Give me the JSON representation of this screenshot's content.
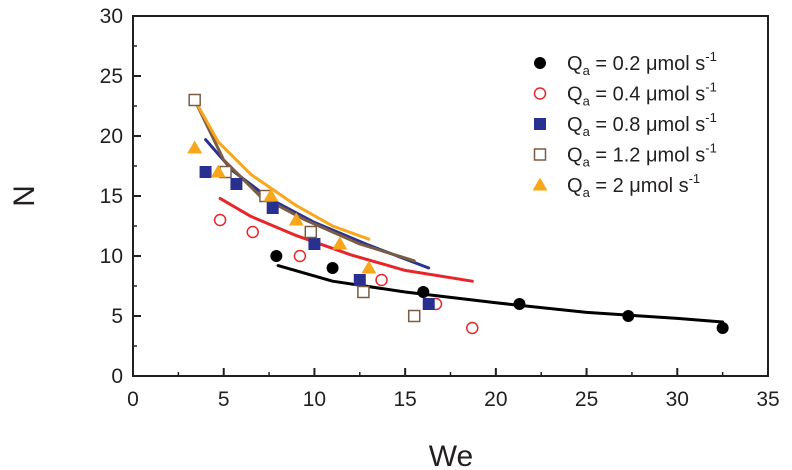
{
  "chart_data": {
    "type": "scatter",
    "xlabel": "We",
    "ylabel": "N",
    "xlim": [
      0,
      35
    ],
    "ylim": [
      0,
      30
    ],
    "xticks": [
      0,
      5,
      10,
      15,
      20,
      25,
      30,
      35
    ],
    "yticks": [
      0,
      5,
      10,
      15,
      20,
      25,
      30
    ],
    "grid": false,
    "legend_position": "top-right",
    "series": [
      {
        "name": "Qa = 0.2 μmol s-1",
        "legend": {
          "base": "Q",
          "sub": "a",
          "mid": " = 0.2 μmol s",
          "sup": "-1"
        },
        "marker": "circle-filled",
        "color": "#000000",
        "points": [
          [
            7.9,
            10
          ],
          [
            11,
            9
          ],
          [
            16,
            7
          ],
          [
            21.3,
            6
          ],
          [
            27.3,
            5
          ],
          [
            32.5,
            4
          ]
        ],
        "fit": [
          [
            8,
            9.2
          ],
          [
            11,
            7.9
          ],
          [
            15,
            7.0
          ],
          [
            20,
            6.1
          ],
          [
            25,
            5.3
          ],
          [
            30,
            4.8
          ],
          [
            32.5,
            4.5
          ]
        ]
      },
      {
        "name": "Qa = 0.4 μmol s-1",
        "legend": {
          "base": "Q",
          "sub": "a",
          "mid": " = 0.4 μmol s",
          "sup": "-1"
        },
        "marker": "circle-open",
        "color": "#e8252a",
        "points": [
          [
            4.8,
            13
          ],
          [
            6.6,
            12
          ],
          [
            9.2,
            10
          ],
          [
            13.7,
            8
          ],
          [
            16.7,
            6
          ],
          [
            18.7,
            4
          ]
        ],
        "fit": [
          [
            4.8,
            14.8
          ],
          [
            6.5,
            13.3
          ],
          [
            9,
            11.7
          ],
          [
            12,
            10.1
          ],
          [
            15,
            8.8
          ],
          [
            18.7,
            7.9
          ]
        ]
      },
      {
        "name": "Qa = 0.8 μmol s-1",
        "legend": {
          "base": "Q",
          "sub": "a",
          "mid": " = 0.8 μmol s",
          "sup": "-1"
        },
        "marker": "square-filled",
        "color": "#28318f",
        "points": [
          [
            4,
            17
          ],
          [
            5.7,
            16
          ],
          [
            7.7,
            14
          ],
          [
            10,
            11
          ],
          [
            12.5,
            8
          ],
          [
            16.3,
            6
          ]
        ],
        "fit": [
          [
            4,
            19.7
          ],
          [
            5.5,
            17.1
          ],
          [
            7.5,
            14.8
          ],
          [
            10,
            12.8
          ],
          [
            13,
            10.9
          ],
          [
            16.3,
            9.0
          ]
        ]
      },
      {
        "name": "Qa = 1.2 μmol s-1",
        "legend": {
          "base": "Q",
          "sub": "a",
          "mid": " = 1.2 μmol s",
          "sup": "-1"
        },
        "marker": "square-open",
        "color": "#7a5c44",
        "points": [
          [
            3.4,
            23
          ],
          [
            5.1,
            17
          ],
          [
            7.3,
            15
          ],
          [
            9.8,
            12
          ],
          [
            12.7,
            7
          ],
          [
            15.5,
            5
          ]
        ],
        "fit": [
          [
            3.4,
            23
          ],
          [
            5,
            18.0
          ],
          [
            7,
            15.0
          ],
          [
            9.5,
            13.0
          ],
          [
            12.5,
            11.0
          ],
          [
            15.5,
            9.6
          ]
        ]
      },
      {
        "name": "Qa = 2 μmol s-1",
        "legend": {
          "base": "Q",
          "sub": "a",
          "mid": " = 2 μmol s",
          "sup": "-1"
        },
        "marker": "triangle-filled",
        "color": "#f7a719",
        "points": [
          [
            3.4,
            19
          ],
          [
            4.7,
            17
          ],
          [
            7.6,
            15
          ],
          [
            9,
            13
          ],
          [
            11.4,
            11
          ],
          [
            13,
            9
          ]
        ],
        "fit": [
          [
            3.4,
            23
          ],
          [
            4.7,
            19.5
          ],
          [
            6.5,
            16.8
          ],
          [
            9,
            14.2
          ],
          [
            11,
            12.5
          ],
          [
            13,
            11.4
          ]
        ]
      }
    ]
  }
}
